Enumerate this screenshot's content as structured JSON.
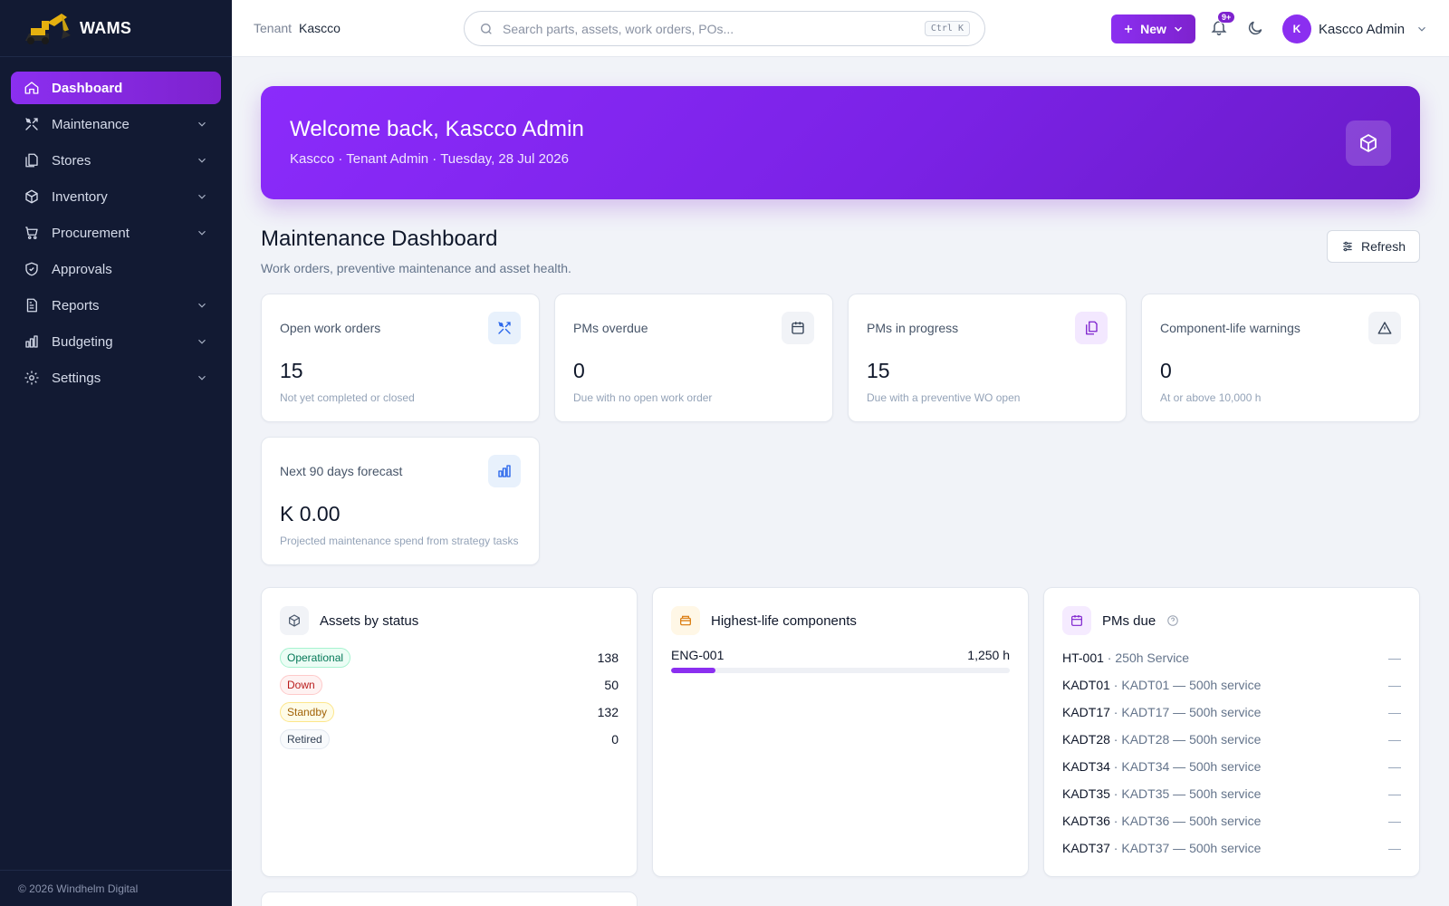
{
  "brand": {
    "name": "WAMS"
  },
  "sidebar": {
    "items": [
      {
        "label": "Dashboard",
        "icon": "home-icon",
        "active": true,
        "expandable": false
      },
      {
        "label": "Maintenance",
        "icon": "wrench-icon",
        "active": false,
        "expandable": true
      },
      {
        "label": "Stores",
        "icon": "stores-icon",
        "active": false,
        "expandable": true
      },
      {
        "label": "Inventory",
        "icon": "box-icon",
        "active": false,
        "expandable": true
      },
      {
        "label": "Procurement",
        "icon": "cart-icon",
        "active": false,
        "expandable": true
      },
      {
        "label": "Approvals",
        "icon": "shield-check-icon",
        "active": false,
        "expandable": false
      },
      {
        "label": "Reports",
        "icon": "report-icon",
        "active": false,
        "expandable": true
      },
      {
        "label": "Budgeting",
        "icon": "bar-chart-icon",
        "active": false,
        "expandable": true
      },
      {
        "label": "Settings",
        "icon": "gear-icon",
        "active": false,
        "expandable": true
      }
    ],
    "footer": "© 2026 Windhelm Digital"
  },
  "topbar": {
    "tenant_label": "Tenant",
    "tenant_value": "Kascco",
    "search_placeholder": "Search parts, assets, work orders, POs...",
    "search_shortcut": "Ctrl K",
    "new_label": "New",
    "notifications_badge": "9+",
    "user_initial": "K",
    "user_name": "Kascco Admin"
  },
  "hero": {
    "title": "Welcome back, Kascco Admin",
    "subtitle": "Kascco · Tenant Admin · Tuesday, 28 Jul 2026"
  },
  "page": {
    "title": "Maintenance Dashboard",
    "description": "Work orders, preventive maintenance and asset health.",
    "refresh_label": "Refresh"
  },
  "kpis": [
    {
      "title": "Open work orders",
      "value": "15",
      "note": "Not yet completed or closed",
      "icon": "wrench-icon",
      "icon_bg": "#e8f1fc",
      "icon_color": "#2563eb"
    },
    {
      "title": "PMs overdue",
      "value": "0",
      "note": "Due with no open work order",
      "icon": "calendar-icon",
      "icon_bg": "#f1f3f7",
      "icon_color": "#334155"
    },
    {
      "title": "PMs in progress",
      "value": "15",
      "note": "Due with a preventive WO open",
      "icon": "copy-icon",
      "icon_bg": "#f3e8ff",
      "icon_color": "#7e22ce"
    },
    {
      "title": "Component-life warnings",
      "value": "0",
      "note": "At or above 10,000 h",
      "icon": "warning-icon",
      "icon_bg": "#f1f3f7",
      "icon_color": "#334155"
    },
    {
      "title": "Next 90 days forecast",
      "value": "K 0.00",
      "note": "Projected maintenance spend from strategy tasks",
      "icon": "bar-chart-icon",
      "icon_bg": "#e8f1fc",
      "icon_color": "#2563eb"
    }
  ],
  "assets_panel": {
    "title": "Assets by status",
    "rows": [
      {
        "status": "Operational",
        "count": "138",
        "fg": "#047857",
        "bg": "#ecfdf5",
        "border": "#a7f3d0"
      },
      {
        "status": "Down",
        "count": "50",
        "fg": "#b91c1c",
        "bg": "#fef2f2",
        "border": "#fecaca"
      },
      {
        "status": "Standby",
        "count": "132",
        "fg": "#a16207",
        "bg": "#fefce8",
        "border": "#fde68a"
      },
      {
        "status": "Retired",
        "count": "0",
        "fg": "#334155",
        "bg": "#f8fafc",
        "border": "#e2e8f0"
      }
    ]
  },
  "components_panel": {
    "title": "Highest-life components",
    "rows": [
      {
        "code": "ENG-001",
        "value": "1,250 h",
        "fill_fraction": 0.13
      }
    ]
  },
  "pms_panel": {
    "title": "PMs due",
    "rows": [
      {
        "code": "HT-001",
        "desc": "250h Service",
        "due": "—"
      },
      {
        "code": "KADT01",
        "desc": "KADT01 — 500h service",
        "due": "—"
      },
      {
        "code": "KADT17",
        "desc": "KADT17 — 500h service",
        "due": "—"
      },
      {
        "code": "KADT28",
        "desc": "KADT28 — 500h service",
        "due": "—"
      },
      {
        "code": "KADT34",
        "desc": "KADT34 — 500h service",
        "due": "—"
      },
      {
        "code": "KADT35",
        "desc": "KADT35 — 500h service",
        "due": "—"
      },
      {
        "code": "KADT36",
        "desc": "KADT36 — 500h service",
        "due": "—"
      },
      {
        "code": "KADT37",
        "desc": "KADT37 — 500h service",
        "due": "—"
      }
    ]
  },
  "colors": {
    "accent": "#7e22ce",
    "sidebar_bg": "#121a33",
    "page_bg": "#f1f3f8"
  }
}
